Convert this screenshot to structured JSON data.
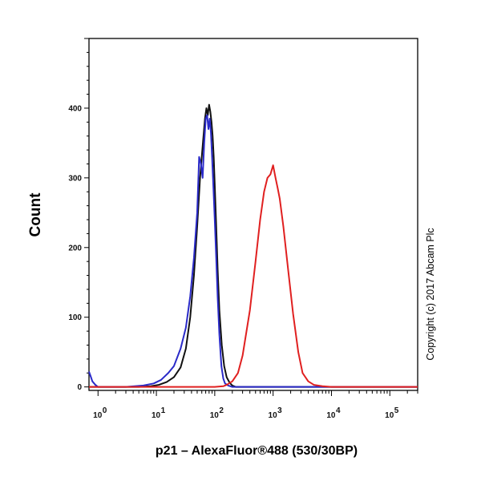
{
  "chart_data": {
    "type": "line",
    "xlabel": "p21 – AlexaFluor®488  (530/30BP)",
    "ylabel": "Count",
    "annotation": "Copyright (c) 2017 Abcam Plc",
    "x_scale": "log",
    "xlim": [
      0.7,
      300000
    ],
    "ylim": [
      -5,
      500
    ],
    "x_ticks": [
      {
        "base": "10",
        "exp": "0",
        "value": 1
      },
      {
        "base": "10",
        "exp": "1",
        "value": 10
      },
      {
        "base": "10",
        "exp": "2",
        "value": 100
      },
      {
        "base": "10",
        "exp": "3",
        "value": 1000
      },
      {
        "base": "10",
        "exp": "4",
        "value": 10000
      },
      {
        "base": "10",
        "exp": "5",
        "value": 100000
      }
    ],
    "y_ticks": [
      0,
      100,
      200,
      300,
      400
    ],
    "grid": false,
    "series": [
      {
        "color": "#111111",
        "x": [
          0.7,
          5,
          8,
          11,
          15,
          20,
          26,
          32,
          38,
          44,
          50,
          56,
          62,
          68,
          72,
          76,
          80,
          84,
          88,
          92,
          96,
          100,
          106,
          112,
          120,
          132,
          145,
          160,
          180,
          200,
          230,
          300,
          1000,
          10000,
          300000
        ],
        "y": [
          0,
          0,
          1,
          3,
          7,
          14,
          28,
          55,
          100,
          160,
          230,
          300,
          345,
          385,
          400,
          390,
          405,
          395,
          380,
          360,
          330,
          290,
          230,
          170,
          110,
          60,
          30,
          14,
          6,
          2,
          0,
          0,
          0,
          0,
          0
        ]
      },
      {
        "color": "#2a2ac8",
        "x": [
          0.7,
          0.75,
          0.8,
          0.9,
          1.0,
          3,
          6,
          9,
          12,
          16,
          20,
          26,
          32,
          38,
          44,
          50,
          54,
          58,
          62,
          66,
          70,
          74,
          78,
          82,
          86,
          90,
          95,
          100,
          106,
          112,
          120,
          130,
          140,
          150,
          170,
          200,
          300,
          1000,
          10000,
          300000
        ],
        "y": [
          22,
          15,
          8,
          3,
          0,
          0,
          2,
          5,
          10,
          20,
          30,
          55,
          85,
          130,
          185,
          250,
          330,
          320,
          300,
          350,
          385,
          390,
          370,
          385,
          365,
          330,
          285,
          240,
          185,
          130,
          75,
          30,
          12,
          5,
          2,
          0,
          0,
          0,
          0,
          0
        ]
      },
      {
        "color": "#e02020",
        "x": [
          0.7,
          100,
          140,
          160,
          200,
          250,
          300,
          400,
          500,
          600,
          700,
          800,
          900,
          1000,
          1100,
          1200,
          1300,
          1500,
          1800,
          2200,
          2700,
          3200,
          4000,
          5000,
          7000,
          10000,
          300000
        ],
        "y": [
          0,
          0,
          1,
          3,
          8,
          20,
          45,
          110,
          180,
          240,
          280,
          300,
          305,
          318,
          300,
          285,
          270,
          230,
          170,
          105,
          50,
          20,
          8,
          3,
          1,
          0,
          0
        ]
      }
    ]
  }
}
